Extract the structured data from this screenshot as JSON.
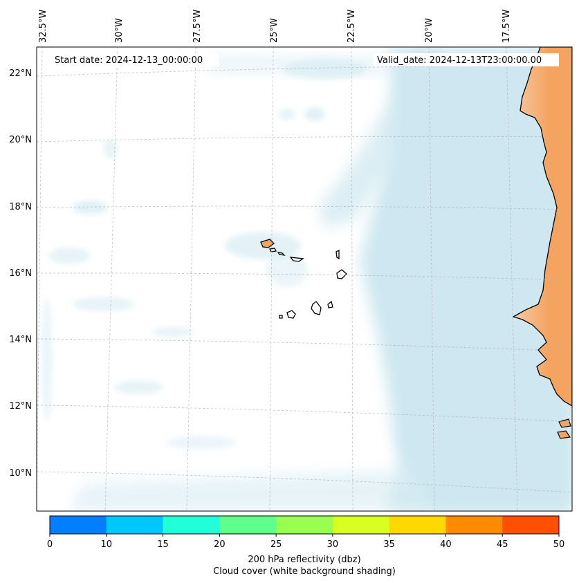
{
  "map": {
    "lon_ticks": [
      "32.5°W",
      "30°W",
      "27.5°W",
      "25°W",
      "22.5°W",
      "20°W",
      "17.5°W"
    ],
    "lat_ticks": [
      "22°N",
      "20°N",
      "18°N",
      "16°N",
      "14°N",
      "12°N",
      "10°N"
    ],
    "start_date": "Start date: 2024-12-13_00:00:00",
    "valid_date": "Valid_date: 2024-12-13T23:00:00.00",
    "colors": {
      "cloud": "#add8e6",
      "land": "#f4a460",
      "coastline": "#000000",
      "grid": "#b0b0b0"
    }
  },
  "colorbar": {
    "colors": [
      "#0080ff",
      "#00c8ff",
      "#20ffd8",
      "#60ff8c",
      "#98ff50",
      "#d8ff20",
      "#ffd800",
      "#ff8c00",
      "#ff5000"
    ],
    "ticks": [
      "0",
      "10",
      "15",
      "20",
      "25",
      "30",
      "35",
      "40",
      "45",
      "50"
    ],
    "label_line1": "200 hPa reflectivity (dbz)",
    "label_line2": "Cloud cover (white background shading)"
  }
}
